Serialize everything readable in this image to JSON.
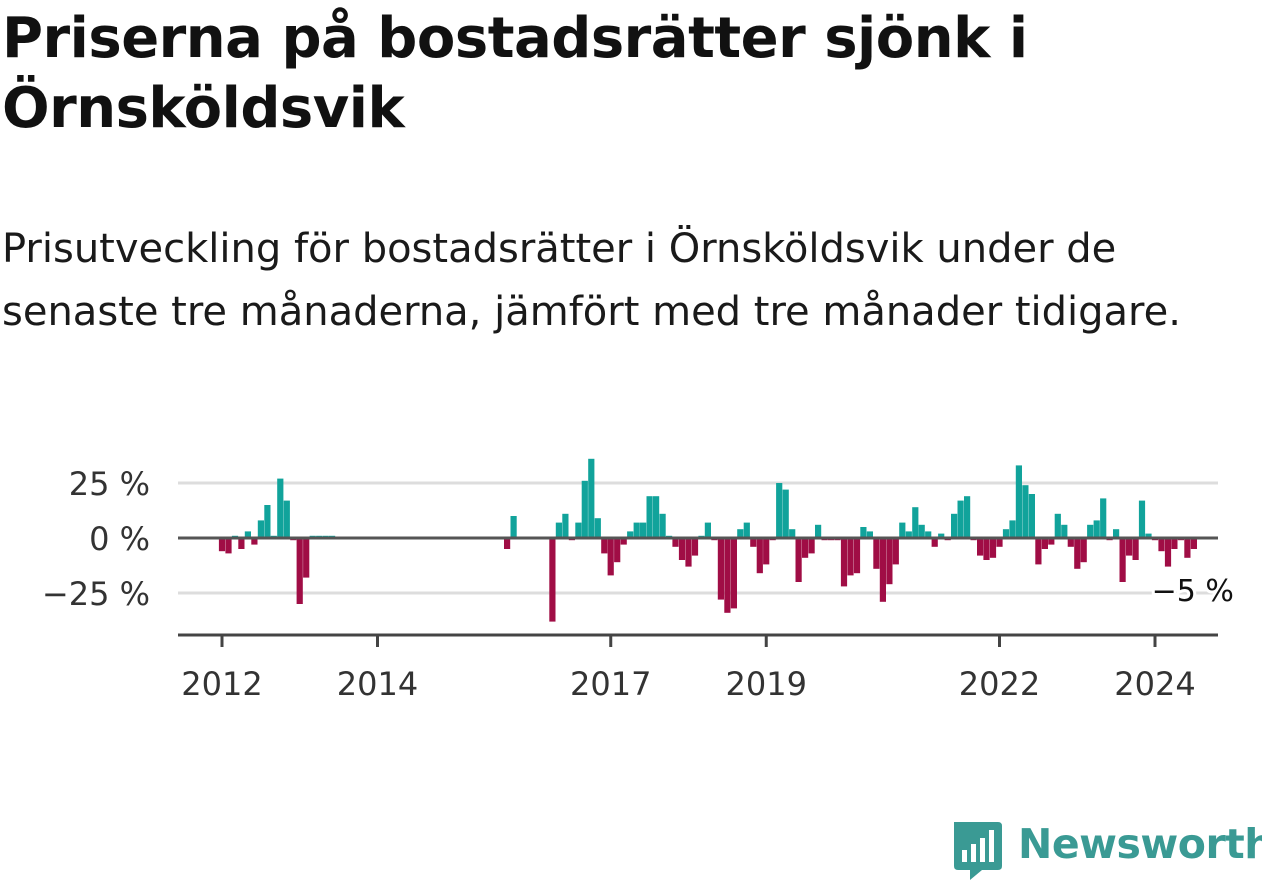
{
  "title": "Priserna på bostadsrätter sjönk i Örnsköldsvik",
  "subtitle": "Prisutveckling för bostadsrätter i Örnsköldsvik under de senaste tre månaderna, jämfört med tre månader tidigare.",
  "brand": {
    "name": "Newsworthy",
    "icon": "newsworthy-logo-icon",
    "color": "#3a9a94"
  },
  "colors": {
    "positive": "#11a39b",
    "negative": "#a00d45",
    "baseline": "#555555",
    "grid": "#dddddd"
  },
  "chart_data": {
    "type": "bar",
    "title": "Priserna på bostadsrätter sjönk i Örnsköldsvik",
    "xlabel": "",
    "ylabel": "",
    "ylim": [
      -38,
      38
    ],
    "yticks": [
      25,
      0,
      -25
    ],
    "ytick_labels": [
      "25 %",
      "0 %",
      "−25 %"
    ],
    "xticks": [
      2012,
      2014,
      2017,
      2019,
      2022,
      2024
    ],
    "xtick_labels": [
      "2012",
      "2014",
      "2017",
      "2019",
      "2022",
      "2024"
    ],
    "grid": true,
    "annotation": {
      "text": "−5 %",
      "x": "2024-07",
      "value": -5
    },
    "x": [
      "2012-01",
      "2012-02",
      "2012-03",
      "2012-04",
      "2012-05",
      "2012-06",
      "2012-07",
      "2012-08",
      "2012-09",
      "2012-10",
      "2012-11",
      "2012-12",
      "2013-01",
      "2013-02",
      "2013-03",
      "2013-04",
      "2013-05",
      "2013-06",
      "2015-09",
      "2015-10",
      "2016-04",
      "2016-05",
      "2016-06",
      "2016-07",
      "2016-08",
      "2016-09",
      "2016-10",
      "2016-11",
      "2016-12",
      "2017-01",
      "2017-02",
      "2017-03",
      "2017-04",
      "2017-05",
      "2017-06",
      "2017-07",
      "2017-08",
      "2017-09",
      "2017-10",
      "2017-11",
      "2017-12",
      "2018-01",
      "2018-02",
      "2018-03",
      "2018-04",
      "2018-05",
      "2018-06",
      "2018-07",
      "2018-08",
      "2018-09",
      "2018-10",
      "2018-11",
      "2018-12",
      "2019-01",
      "2019-02",
      "2019-03",
      "2019-04",
      "2019-05",
      "2019-06",
      "2019-07",
      "2019-08",
      "2019-09",
      "2019-10",
      "2019-11",
      "2019-12",
      "2020-01",
      "2020-02",
      "2020-03",
      "2020-04",
      "2020-05",
      "2020-06",
      "2020-07",
      "2020-08",
      "2020-09",
      "2020-10",
      "2020-11",
      "2020-12",
      "2021-01",
      "2021-02",
      "2021-03",
      "2021-04",
      "2021-05",
      "2021-06",
      "2021-07",
      "2021-08",
      "2021-09",
      "2021-10",
      "2021-11",
      "2021-12",
      "2022-01",
      "2022-02",
      "2022-03",
      "2022-04",
      "2022-05",
      "2022-06",
      "2022-07",
      "2022-08",
      "2022-09",
      "2022-10",
      "2022-11",
      "2022-12",
      "2023-01",
      "2023-02",
      "2023-03",
      "2023-04",
      "2023-05",
      "2023-06",
      "2023-07",
      "2023-08",
      "2023-09",
      "2023-10",
      "2023-11",
      "2023-12",
      "2024-01",
      "2024-02",
      "2024-03",
      "2024-04",
      "2024-05",
      "2024-06",
      "2024-07"
    ],
    "values": [
      -6,
      -7,
      1,
      -5,
      3,
      -3,
      8,
      15,
      1,
      27,
      17,
      -1,
      -30,
      -18,
      1,
      1,
      1,
      1,
      -5,
      10,
      -38,
      7,
      11,
      -1,
      7,
      26,
      36,
      9,
      -7,
      -17,
      -11,
      -3,
      3,
      7,
      7,
      19,
      19,
      11,
      1,
      -4,
      -10,
      -13,
      -8,
      1,
      7,
      -1,
      -28,
      -34,
      -32,
      4,
      7,
      -4,
      -16,
      -12,
      -1,
      25,
      22,
      4,
      -20,
      -9,
      -7,
      6,
      -1,
      -1,
      -1,
      -22,
      -17,
      -16,
      5,
      3,
      -14,
      -29,
      -21,
      -12,
      7,
      3,
      14,
      6,
      3,
      -4,
      2,
      -1,
      11,
      17,
      19,
      -1,
      -8,
      -10,
      -9,
      -4,
      4,
      8,
      33,
      24,
      20,
      -12,
      -5,
      -3,
      11,
      6,
      -4,
      -14,
      -11,
      6,
      8,
      18,
      -1,
      4,
      -20,
      -8,
      -10,
      17,
      2,
      -1,
      -6,
      -13,
      -5,
      -1,
      -9,
      -5
    ]
  }
}
